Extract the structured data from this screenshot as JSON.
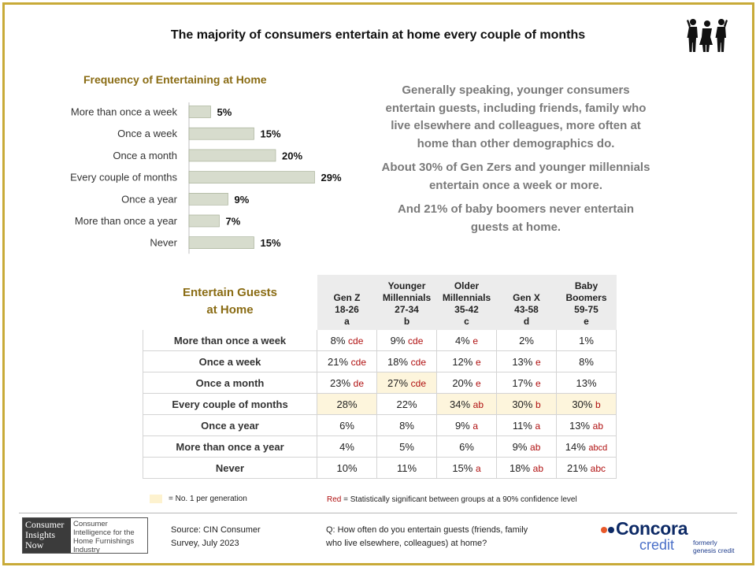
{
  "title": "The majority of consumers entertain at home every couple of months",
  "icons": {
    "header": "people-group-icon"
  },
  "chart_data": {
    "type": "bar",
    "orientation": "horizontal",
    "title": "Frequency of Entertaining at Home",
    "categories": [
      "More than once a week",
      "Once a week",
      "Once a month",
      "Every couple of months",
      "Once a year",
      "More than once a year",
      "Never"
    ],
    "values": [
      5,
      15,
      20,
      29,
      9,
      7,
      15
    ],
    "value_labels": [
      "5%",
      "15%",
      "20%",
      "29%",
      "9%",
      "7%",
      "15%"
    ],
    "unit": "%",
    "bar_color": "#d7dccd",
    "grid": false,
    "legend": "none"
  },
  "narrative": {
    "p1": "Generally speaking, younger consumers entertain guests, including friends, family who live elsewhere and colleagues, more often at home than other demographics do.",
    "p2": "About 30% of Gen Zers and younger millennials entertain once a week or more.",
    "p3": "And 21% of baby boomers never entertain guests at home."
  },
  "table": {
    "title_line1": "Entertain Guests",
    "title_line2": "at Home",
    "columns": [
      {
        "l1": "",
        "l2": "Gen Z",
        "l3": "18-26",
        "l4": "a"
      },
      {
        "l1": "Younger",
        "l2": "Millennials",
        "l3": "27-34",
        "l4": "b"
      },
      {
        "l1": "Older",
        "l2": "Millennials",
        "l3": "35-42",
        "l4": "c"
      },
      {
        "l1": "",
        "l2": "Gen X",
        "l3": "43-58",
        "l4": "d"
      },
      {
        "l1": "Baby",
        "l2": "Boomers",
        "l3": "59-75",
        "l4": "e"
      }
    ],
    "rows": [
      {
        "label": "More than once a week",
        "cells": [
          {
            "v": "8%",
            "s": "cde"
          },
          {
            "v": "9%",
            "s": "cde"
          },
          {
            "v": "4%",
            "s": "e"
          },
          {
            "v": "2%",
            "s": ""
          },
          {
            "v": "1%",
            "s": ""
          }
        ]
      },
      {
        "label": "Once a week",
        "cells": [
          {
            "v": "21%",
            "s": "cde"
          },
          {
            "v": "18%",
            "s": "cde"
          },
          {
            "v": "12%",
            "s": "e"
          },
          {
            "v": "13%",
            "s": "e"
          },
          {
            "v": "8%",
            "s": ""
          }
        ]
      },
      {
        "label": "Once a month",
        "cells": [
          {
            "v": "23%",
            "s": "de"
          },
          {
            "v": "27%",
            "s": "cde",
            "hl": true
          },
          {
            "v": "20%",
            "s": "e"
          },
          {
            "v": "17%",
            "s": "e"
          },
          {
            "v": "13%",
            "s": ""
          }
        ]
      },
      {
        "label": "Every couple of months",
        "cells": [
          {
            "v": "28%",
            "s": "",
            "hl": true
          },
          {
            "v": "22%",
            "s": ""
          },
          {
            "v": "34%",
            "s": "ab",
            "hl": true
          },
          {
            "v": "30%",
            "s": "b",
            "hl": true
          },
          {
            "v": "30%",
            "s": "b",
            "hl": true
          }
        ]
      },
      {
        "label": "Once a year",
        "cells": [
          {
            "v": "6%",
            "s": ""
          },
          {
            "v": "8%",
            "s": ""
          },
          {
            "v": "9%",
            "s": "a"
          },
          {
            "v": "11%",
            "s": "a"
          },
          {
            "v": "13%",
            "s": "ab"
          }
        ]
      },
      {
        "label": "More than once a year",
        "cells": [
          {
            "v": "4%",
            "s": ""
          },
          {
            "v": "5%",
            "s": ""
          },
          {
            "v": "6%",
            "s": ""
          },
          {
            "v": "9%",
            "s": "ab"
          },
          {
            "v": "14%",
            "s": "abcd",
            "small": true
          }
        ]
      },
      {
        "label": "Never",
        "cells": [
          {
            "v": "10%",
            "s": ""
          },
          {
            "v": "11%",
            "s": ""
          },
          {
            "v": "15%",
            "s": "a"
          },
          {
            "v": "18%",
            "s": "ab"
          },
          {
            "v": "21%",
            "s": "abc"
          }
        ]
      }
    ]
  },
  "legend": {
    "highlight_text": "= No. 1 per generation",
    "highlight_color": "#fdf2cf",
    "red_word": "Red",
    "red_text": " = Statistically significant between groups at a 90% confidence level"
  },
  "footer": {
    "cin_logo_left": [
      "Consumer",
      "Insights",
      "Now"
    ],
    "cin_logo_right": "Consumer Intelligence for the Home Furnishings Industry",
    "source": "Source: CIN Consumer Survey, July 2023",
    "question": "Q: How often do you entertain guests (friends, family who live elsewhere, colleagues) at home?",
    "brand_word": "Concora",
    "brand_sub": "credit",
    "brand_note": "formerly genesis credit"
  },
  "colors": {
    "accent_gold": "#c8aa38",
    "title_gold": "#8a6c14",
    "significance_red": "#b01010",
    "brand_navy": "#0d2a66"
  }
}
